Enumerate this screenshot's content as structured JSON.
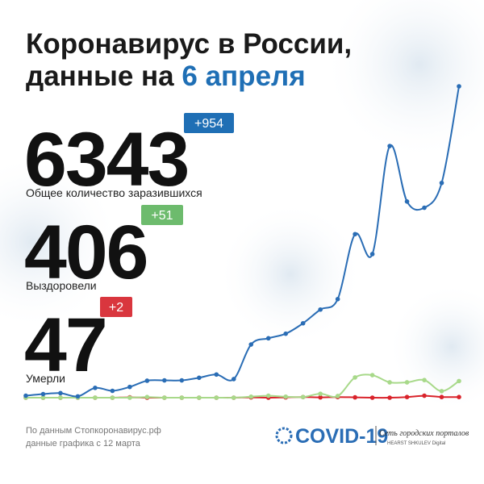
{
  "header": {
    "title_line1": "Коронавирус в России,",
    "title_line2": "данные на",
    "title_date": "6 апреля"
  },
  "stats": [
    {
      "value": 6343,
      "change": "+954",
      "label": "Общее количество заразившихся",
      "color": "#1f6fb5"
    },
    {
      "value": 406,
      "change": "+51",
      "label": "Выздоровели",
      "color": "#6dbb6d"
    },
    {
      "value": 47,
      "change": "+2",
      "label": "Умерли",
      "color": "#d9363e"
    }
  ],
  "chart_data": {
    "type": "line",
    "categories": [
      null,
      null,
      null,
      null,
      null,
      null,
      null,
      null,
      null,
      null,
      null,
      null,
      null,
      null,
      null,
      null,
      null,
      null,
      null,
      null,
      null,
      null,
      null,
      null,
      null,
      null
    ],
    "series": [
      {
        "color": "#2a6db5",
        "values": [
          6,
          11,
          14,
          4,
          30,
          21,
          33,
          52,
          53,
          53,
          61,
          71,
          57,
          163,
          182,
          196,
          228,
          270,
          302,
          501,
          440,
          771,
          601,
          582,
          658,
          954
        ]
      },
      {
        "color": "#a8d98a",
        "values": [
          0,
          0,
          0,
          0,
          0,
          0,
          0,
          2,
          0,
          0,
          0,
          0,
          0,
          3,
          6,
          3,
          2,
          12,
          5,
          62,
          69,
          47,
          47,
          54,
          20,
          51
        ]
      },
      {
        "color": "#d9232b",
        "values": [
          0,
          0,
          0,
          0,
          0,
          0,
          1,
          0,
          0,
          0,
          0,
          0,
          0,
          1,
          0,
          1,
          2,
          1,
          2,
          1,
          0,
          0,
          2,
          6,
          2,
          2
        ]
      }
    ]
  },
  "footer": {
    "source": "По данным Стопкоронавирус.рф",
    "since": "данные графика с 12 марта",
    "logo": "COVID-19",
    "network": "Сеть городских порталов",
    "publisher": "HEARST SHKULEV Digital"
  }
}
